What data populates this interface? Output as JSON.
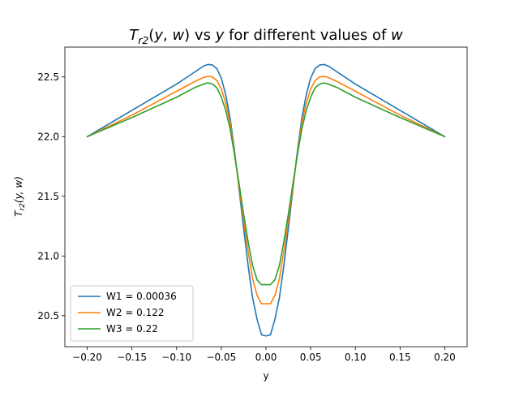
{
  "chart_data": {
    "type": "line",
    "title": {
      "var_T": "T",
      "sub": "r2",
      "args_open": "(",
      "arg_y": "y",
      "args_comma": ", ",
      "arg_w": "w",
      "args_close": ")",
      "mid_text": " vs ",
      "y_var": "y",
      "tail_text": " for different values of ",
      "w_var": "w"
    },
    "xlabel": "y",
    "ylabel": {
      "var_T": "T",
      "sub": "r2",
      "args": "(y, w)"
    },
    "xlim": [
      -0.225,
      0.225
    ],
    "ylim": [
      20.24,
      22.75
    ],
    "xticks": [
      {
        "value": -0.2,
        "label": "−0.20"
      },
      {
        "value": -0.15,
        "label": "−0.15"
      },
      {
        "value": -0.1,
        "label": "−0.10"
      },
      {
        "value": -0.05,
        "label": "−0.05"
      },
      {
        "value": 0.0,
        "label": "0.00"
      },
      {
        "value": 0.05,
        "label": "0.05"
      },
      {
        "value": 0.1,
        "label": "0.10"
      },
      {
        "value": 0.15,
        "label": "0.15"
      },
      {
        "value": 0.2,
        "label": "0.20"
      }
    ],
    "yticks": [
      {
        "value": 20.5,
        "label": "20.5"
      },
      {
        "value": 21.0,
        "label": "21.0"
      },
      {
        "value": 21.5,
        "label": "21.5"
      },
      {
        "value": 22.0,
        "label": "22.0"
      },
      {
        "value": 22.5,
        "label": "22.5"
      }
    ],
    "grid": false,
    "legend_position": "lower-left",
    "x": [
      -0.2,
      -0.15,
      -0.1,
      -0.08,
      -0.07,
      -0.065,
      -0.06,
      -0.055,
      -0.05,
      -0.045,
      -0.04,
      -0.035,
      -0.03,
      -0.025,
      -0.02,
      -0.015,
      -0.01,
      -0.005,
      0.0,
      0.005,
      0.01,
      0.015,
      0.02,
      0.025,
      0.03,
      0.035,
      0.04,
      0.045,
      0.05,
      0.055,
      0.06,
      0.065,
      0.07,
      0.08,
      0.1,
      0.15,
      0.2
    ],
    "series": [
      {
        "name": "W1 = 0.00036",
        "color": "#1f77b4",
        "values": [
          22.0,
          22.22,
          22.44,
          22.54,
          22.59,
          22.605,
          22.6,
          22.57,
          22.49,
          22.35,
          22.15,
          21.87,
          21.55,
          21.23,
          20.92,
          20.65,
          20.47,
          20.34,
          20.33,
          20.34,
          20.47,
          20.65,
          20.92,
          21.23,
          21.55,
          21.87,
          22.15,
          22.35,
          22.49,
          22.57,
          22.6,
          22.605,
          22.59,
          22.54,
          22.44,
          22.22,
          22.0
        ]
      },
      {
        "name": "W2 = 0.122",
        "color": "#ff7f0e",
        "values": [
          22.0,
          22.18,
          22.38,
          22.46,
          22.495,
          22.505,
          22.5,
          22.47,
          22.4,
          22.28,
          22.11,
          21.85,
          21.57,
          21.3,
          21.04,
          20.81,
          20.67,
          20.6,
          20.6,
          20.6,
          20.67,
          20.81,
          21.04,
          21.3,
          21.57,
          21.85,
          22.11,
          22.28,
          22.4,
          22.47,
          22.5,
          22.505,
          22.495,
          22.46,
          22.38,
          22.18,
          22.0
        ]
      },
      {
        "name": "W3 = 0.22",
        "color": "#2ca02c",
        "values": [
          22.0,
          22.16,
          22.33,
          22.41,
          22.44,
          22.45,
          22.44,
          22.41,
          22.33,
          22.22,
          22.06,
          21.84,
          21.6,
          21.35,
          21.12,
          20.92,
          20.8,
          20.76,
          20.76,
          20.76,
          20.8,
          20.92,
          21.12,
          21.35,
          21.6,
          21.84,
          22.06,
          22.22,
          22.33,
          22.41,
          22.44,
          22.45,
          22.44,
          22.41,
          22.33,
          22.16,
          22.0
        ]
      }
    ]
  }
}
